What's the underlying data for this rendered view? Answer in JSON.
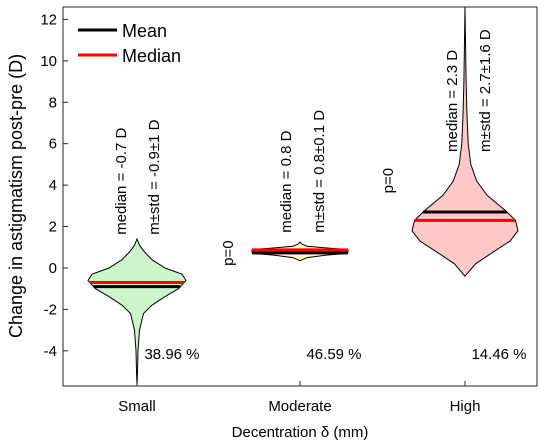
{
  "chart_data": {
    "type": "violin",
    "xlabel": "Decentration δ (mm)",
    "ylabel": "Change in astigmatism post-pre (D)",
    "ylim": [
      -5.7,
      12.6
    ],
    "yticks": [
      -4,
      -2,
      0,
      2,
      4,
      6,
      8,
      10,
      12
    ],
    "categories": [
      "Small",
      "Moderate",
      "High"
    ],
    "legend": {
      "position": "top-left",
      "entries": [
        {
          "label": "Mean",
          "color": "#000000"
        },
        {
          "label": "Median",
          "color": "#ff0000"
        }
      ]
    },
    "groups": [
      {
        "category": "Small",
        "fill": "#ccf5c9",
        "mean": -0.9,
        "median": -0.7,
        "median_label": "median = -0.7 D",
        "mstd_label": "m±std = -0.9±1 D",
        "percent_label": "38.96 %",
        "p_label": "",
        "min": -5.7,
        "max": 1.4,
        "density": [
          [
            -5.7,
            0.0
          ],
          [
            -5.0,
            0.01
          ],
          [
            -4.0,
            0.02
          ],
          [
            -3.0,
            0.05
          ],
          [
            -2.2,
            0.13
          ],
          [
            -1.8,
            0.3
          ],
          [
            -1.4,
            0.55
          ],
          [
            -1.0,
            0.83
          ],
          [
            -0.6,
            0.98
          ],
          [
            -0.3,
            0.9
          ],
          [
            0.0,
            0.56
          ],
          [
            0.4,
            0.3
          ],
          [
            0.8,
            0.14
          ],
          [
            1.1,
            0.05
          ],
          [
            1.4,
            0.0
          ]
        ]
      },
      {
        "category": "Moderate",
        "fill": "#fff8c0",
        "mean": 0.8,
        "median": 0.8,
        "median_label": "median = 0.8 D",
        "mstd_label": "m±std = 0.8±0.1 D",
        "percent_label": "46.59 %",
        "p_label": "p=0",
        "min": 0.35,
        "max": 1.25,
        "density": [
          [
            0.35,
            0.0
          ],
          [
            0.5,
            0.15
          ],
          [
            0.62,
            0.55
          ],
          [
            0.7,
            0.95
          ],
          [
            0.75,
            1.0
          ],
          [
            0.85,
            1.0
          ],
          [
            0.9,
            0.9
          ],
          [
            0.98,
            0.5
          ],
          [
            1.05,
            0.15
          ],
          [
            1.15,
            0.04
          ],
          [
            1.25,
            0.0
          ]
        ]
      },
      {
        "category": "High",
        "fill": "#ffc8c8",
        "mean": 2.7,
        "median": 2.3,
        "median_label": "median = 2.3 D",
        "mstd_label": "m±std = 2.7±1.6 D",
        "percent_label": "14.46 %",
        "p_label": "p=0",
        "min": -0.4,
        "max": 12.6,
        "density": [
          [
            -0.4,
            0.0
          ],
          [
            0.2,
            0.2
          ],
          [
            0.8,
            0.55
          ],
          [
            1.3,
            0.85
          ],
          [
            1.8,
            1.0
          ],
          [
            2.3,
            0.95
          ],
          [
            2.8,
            0.75
          ],
          [
            3.5,
            0.42
          ],
          [
            4.2,
            0.22
          ],
          [
            5.0,
            0.11
          ],
          [
            6.0,
            0.06
          ],
          [
            7.5,
            0.035
          ],
          [
            9.0,
            0.02
          ],
          [
            11.0,
            0.01
          ],
          [
            12.6,
            0.0
          ]
        ]
      }
    ]
  }
}
